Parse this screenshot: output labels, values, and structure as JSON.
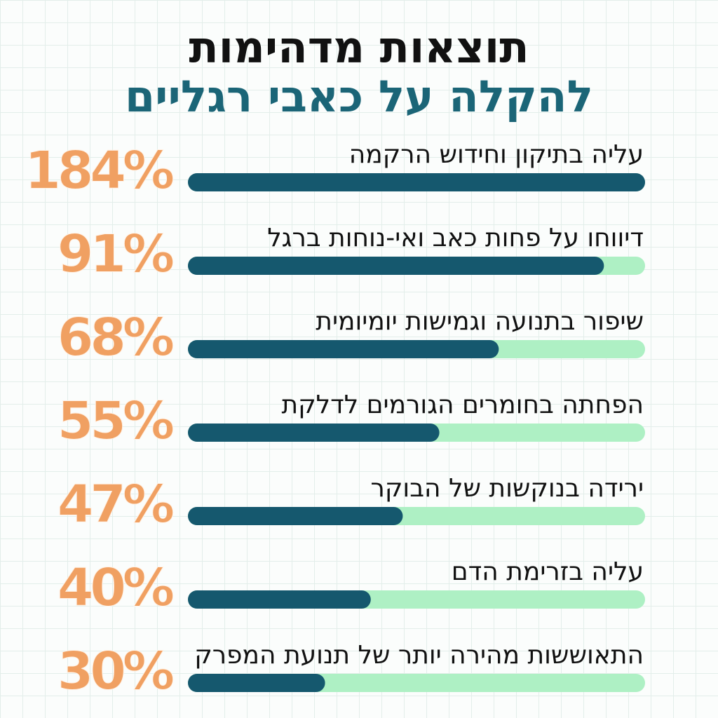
{
  "chart_data": {
    "type": "bar",
    "orientation": "horizontal",
    "title": "תוצאות מדהימות",
    "subtitle": "להקלה על כאבי רגליים",
    "categories": [
      "עליה בתיקון וחידוש הרקמה",
      "דיווחו על פחות כאב ואי-נוחות ברגל",
      "שיפור בתנועה וגמישות יומיומית",
      "הפחתה בחומרים הגורמים לדלקת",
      "ירידה בנוקשות של הבוקר",
      "עליה בזרימת הדם",
      "התאוששות מהירה יותר של תנועת המפרק"
    ],
    "values": [
      184,
      91,
      68,
      55,
      47,
      40,
      30
    ],
    "value_labels": [
      "184%",
      "91%",
      "68%",
      "55%",
      "47%",
      "40%",
      "30%"
    ],
    "xlim": [
      0,
      100
    ],
    "color": "#15586e",
    "track_color": "#aef0c4",
    "label_color": "#f0a062"
  }
}
